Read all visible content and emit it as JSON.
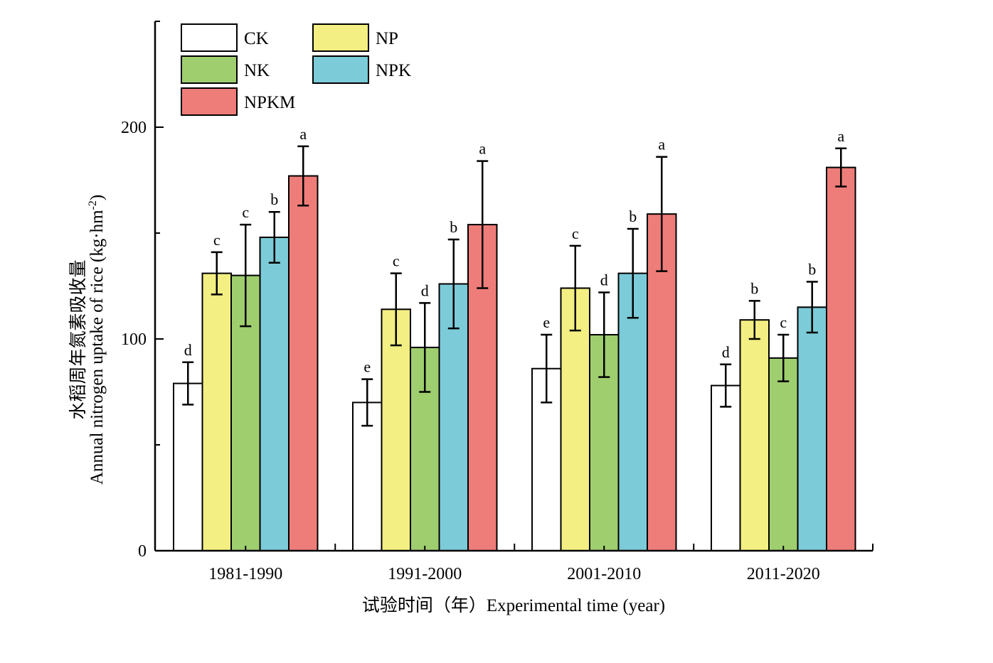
{
  "chart_data": {
    "type": "bar",
    "title": "",
    "xlabel": "试验时间（年）Experimental time (year)",
    "ylabel_cn": "水稻周年氮素吸收量",
    "ylabel_en_prefix": "Annual nitrogen uptake of rice (kg·hm",
    "ylabel_en_sup": "-2",
    "ylabel_en_suffix": ")",
    "ylim": [
      0,
      250
    ],
    "yticks": [
      "0",
      "100",
      "200"
    ],
    "ytick_values": [
      0,
      100,
      200
    ],
    "legend_position": "top-left",
    "grid": false,
    "categories": [
      "1981-1990",
      "1991-2000",
      "2001-2010",
      "2011-2020"
    ],
    "series": [
      {
        "name": "CK",
        "color": "#ffffff",
        "values": [
          79,
          70,
          86,
          78
        ],
        "errors": [
          10,
          11,
          16,
          10
        ],
        "labels": [
          "d",
          "e",
          "e",
          "d"
        ]
      },
      {
        "name": "NP",
        "color": "#f3ef82",
        "values": [
          131,
          114,
          124,
          109
        ],
        "errors": [
          10,
          17,
          20,
          9
        ],
        "labels": [
          "c",
          "c",
          "c",
          "b"
        ]
      },
      {
        "name": "NK",
        "color": "#9fce6f",
        "values": [
          130,
          96,
          102,
          91
        ],
        "errors": [
          24,
          21,
          20,
          11
        ],
        "labels": [
          "c",
          "d",
          "d",
          "c"
        ]
      },
      {
        "name": "NPK",
        "color": "#7ccbd8",
        "values": [
          148,
          126,
          131,
          115
        ],
        "errors": [
          12,
          21,
          21,
          12
        ],
        "labels": [
          "b",
          "b",
          "b",
          "b"
        ]
      },
      {
        "name": "NPKM",
        "color": "#ee7d7a",
        "values": [
          177,
          154,
          159,
          181
        ],
        "errors": [
          14,
          30,
          27,
          9
        ],
        "labels": [
          "a",
          "a",
          "a",
          "a"
        ]
      }
    ]
  }
}
